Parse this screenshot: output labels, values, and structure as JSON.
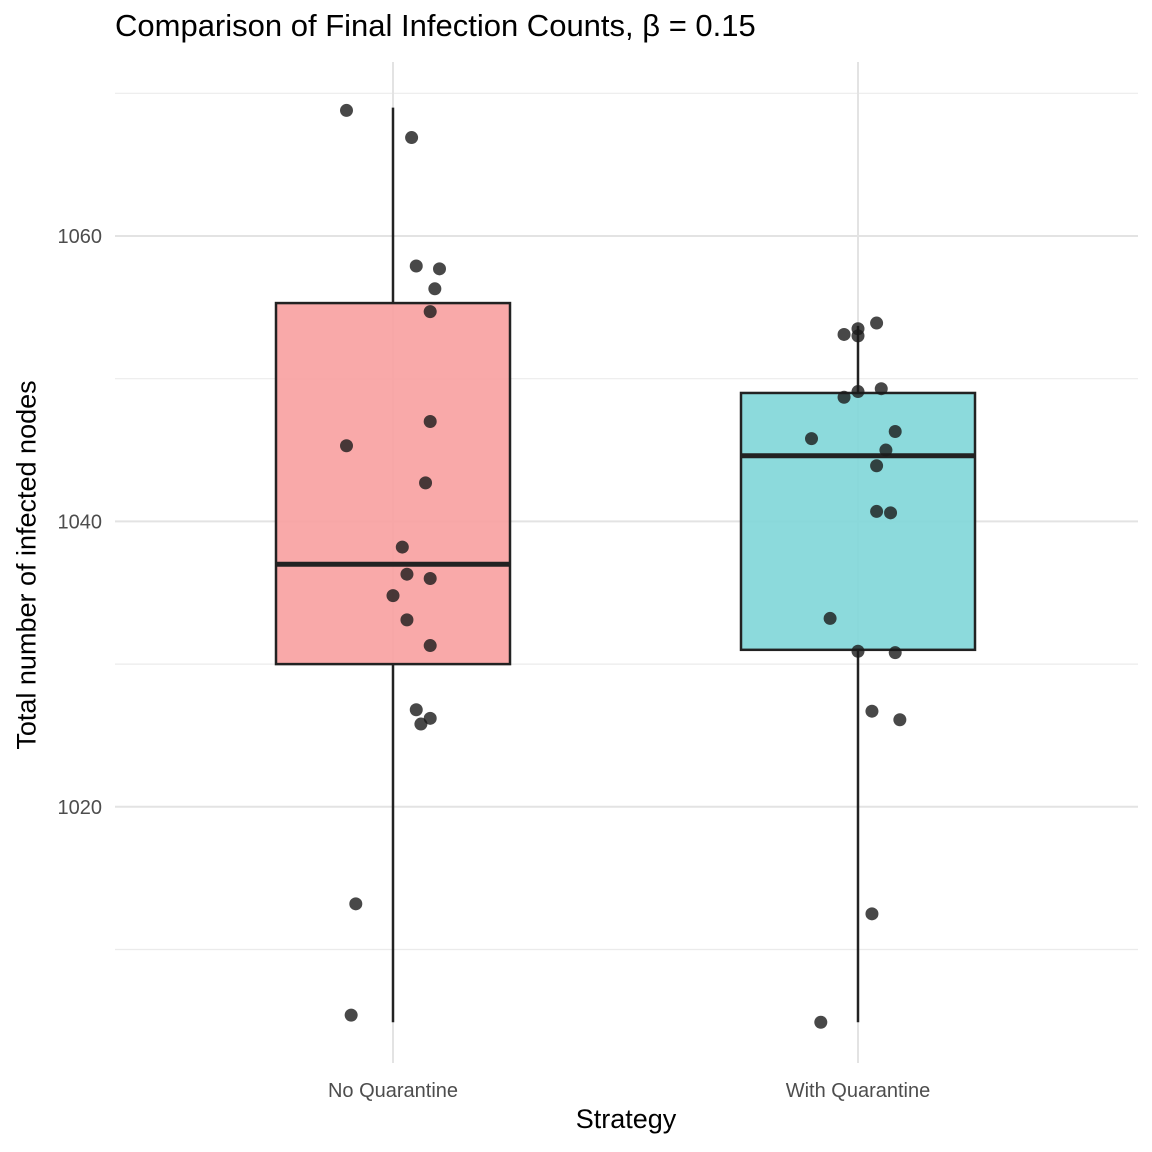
{
  "chart_data": {
    "type": "box",
    "title": "Comparison of Final Infection Counts, β = 0.15",
    "xlabel": "Strategy",
    "ylabel": "Total number of infected nodes",
    "categories": [
      "No Quarantine",
      "With Quarantine"
    ],
    "ylim": [
      1002,
      1073
    ],
    "yticks": [
      1020,
      1040,
      1060
    ],
    "grid": true,
    "colors": {
      "No Quarantine": "#f8a0a0",
      "With Quarantine": "#7fd6d8"
    },
    "boxes": [
      {
        "name": "No Quarantine",
        "min": 1004.9,
        "q1": 1030.0,
        "median": 1037.0,
        "q3": 1055.3,
        "max": 1069.0
      },
      {
        "name": "With Quarantine",
        "min": 1004.9,
        "q1": 1031.0,
        "median": 1044.6,
        "q3": 1049.0,
        "max": 1053.7
      }
    ],
    "points": [
      {
        "group": 0,
        "dx": -0.1,
        "y": 1068.8
      },
      {
        "group": 0,
        "dx": 0.04,
        "y": 1066.9
      },
      {
        "group": 0,
        "dx": 0.05,
        "y": 1057.9
      },
      {
        "group": 0,
        "dx": 0.1,
        "y": 1057.7
      },
      {
        "group": 0,
        "dx": 0.09,
        "y": 1056.3
      },
      {
        "group": 0,
        "dx": 0.08,
        "y": 1054.7
      },
      {
        "group": 0,
        "dx": 0.08,
        "y": 1047.0
      },
      {
        "group": 0,
        "dx": -0.1,
        "y": 1045.3
      },
      {
        "group": 0,
        "dx": 0.07,
        "y": 1042.7
      },
      {
        "group": 0,
        "dx": 0.02,
        "y": 1038.2
      },
      {
        "group": 0,
        "dx": 0.03,
        "y": 1036.3
      },
      {
        "group": 0,
        "dx": 0.08,
        "y": 1036.0
      },
      {
        "group": 0,
        "dx": 0.0,
        "y": 1034.8
      },
      {
        "group": 0,
        "dx": 0.03,
        "y": 1033.1
      },
      {
        "group": 0,
        "dx": 0.08,
        "y": 1031.3
      },
      {
        "group": 0,
        "dx": 0.05,
        "y": 1026.8
      },
      {
        "group": 0,
        "dx": 0.08,
        "y": 1026.2
      },
      {
        "group": 0,
        "dx": 0.06,
        "y": 1025.8
      },
      {
        "group": 0,
        "dx": -0.08,
        "y": 1013.2
      },
      {
        "group": 0,
        "dx": -0.09,
        "y": 1005.4
      },
      {
        "group": 1,
        "dx": 0.04,
        "y": 1053.9
      },
      {
        "group": 1,
        "dx": 0.0,
        "y": 1053.5
      },
      {
        "group": 1,
        "dx": -0.03,
        "y": 1053.1
      },
      {
        "group": 1,
        "dx": 0.0,
        "y": 1053.0
      },
      {
        "group": 1,
        "dx": 0.05,
        "y": 1049.3
      },
      {
        "group": 1,
        "dx": 0.0,
        "y": 1049.1
      },
      {
        "group": 1,
        "dx": -0.03,
        "y": 1048.7
      },
      {
        "group": 1,
        "dx": 0.08,
        "y": 1046.3
      },
      {
        "group": 1,
        "dx": -0.1,
        "y": 1045.8
      },
      {
        "group": 1,
        "dx": 0.06,
        "y": 1045.0
      },
      {
        "group": 1,
        "dx": 0.04,
        "y": 1043.9
      },
      {
        "group": 1,
        "dx": 0.04,
        "y": 1040.7
      },
      {
        "group": 1,
        "dx": 0.07,
        "y": 1040.6
      },
      {
        "group": 1,
        "dx": -0.06,
        "y": 1033.2
      },
      {
        "group": 1,
        "dx": 0.0,
        "y": 1030.9
      },
      {
        "group": 1,
        "dx": 0.08,
        "y": 1030.8
      },
      {
        "group": 1,
        "dx": 0.03,
        "y": 1026.7
      },
      {
        "group": 1,
        "dx": 0.09,
        "y": 1026.1
      },
      {
        "group": 1,
        "dx": 0.03,
        "y": 1012.5
      },
      {
        "group": 1,
        "dx": -0.08,
        "y": 1004.9
      }
    ]
  }
}
